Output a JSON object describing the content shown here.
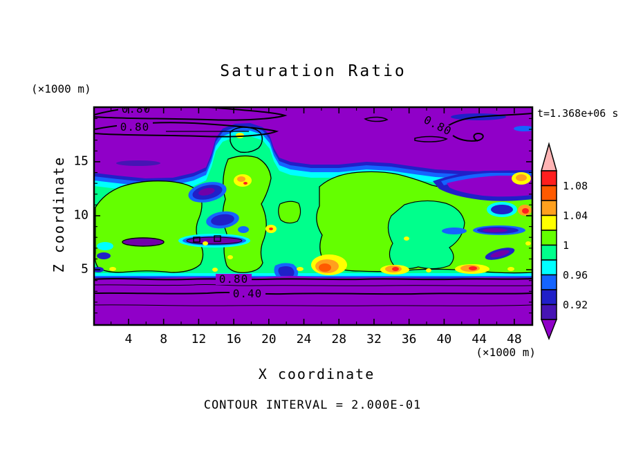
{
  "title": "Saturation Ratio",
  "annotations": {
    "time": "t=1.368e+06 s",
    "contour_interval": "CONTOUR INTERVAL = 2.000E-01"
  },
  "axes": {
    "x": {
      "label": "X coordinate",
      "units": "(×1000 m)",
      "ticks": [
        "4",
        "8",
        "12",
        "16",
        "20",
        "24",
        "28",
        "32",
        "36",
        "40",
        "44",
        "48"
      ]
    },
    "y": {
      "label": "Z coordinate",
      "units": "(×1000 m)",
      "ticks": [
        "15",
        "10",
        "5"
      ]
    }
  },
  "colorbar": {
    "cells_top_to_bottom": [
      "#FF1E1E",
      "#FF5A00",
      "#FFA01E",
      "#FFFF00",
      "#64FF00",
      "#00FF8C",
      "#00FFFF",
      "#1464FF",
      "#2020C8",
      "#4614B4"
    ],
    "over_color": "#FFB4B4",
    "under_color": "#9000C8",
    "labels": [
      {
        "text": "1.08",
        "boundary": 1
      },
      {
        "text": "1.04",
        "boundary": 3
      },
      {
        "text": "1",
        "boundary": 5
      },
      {
        "text": "0.96",
        "boundary": 7
      },
      {
        "text": "0.92",
        "boundary": 9
      }
    ]
  },
  "contour_line_labels": [
    "0.80",
    "0.80",
    "0.80",
    "0.80",
    "0.40"
  ],
  "palette": {
    "purple": "#9000C8",
    "darkpurple": "#7000A8",
    "indigo": "#4614B4",
    "navy": "#2020C8",
    "blue": "#1464FF",
    "cyan": "#00FFFF",
    "springgreen": "#00FF8C",
    "chartreuse": "#64FF00",
    "yellow": "#FFFF00",
    "orange": "#FFA01E",
    "orangered": "#FF5A00",
    "red": "#FF1E1E",
    "pink": "#FFB4B4"
  },
  "chart_data": {
    "type": "filled_contour",
    "title": "Saturation Ratio",
    "xlabel": "X coordinate (×1000 m)",
    "ylabel": "Z coordinate (×1000 m)",
    "xlim": [
      0,
      50
    ],
    "ylim": [
      0,
      20
    ],
    "x_major_ticks": [
      4,
      8,
      12,
      16,
      20,
      24,
      28,
      32,
      36,
      40,
      44,
      48
    ],
    "y_major_ticks": [
      5,
      10,
      15
    ],
    "annotation_time": "t=1.368e+06 s",
    "fill_levels": [
      0.9,
      0.92,
      0.94,
      0.96,
      0.98,
      1.0,
      1.02,
      1.04,
      1.06,
      1.08,
      1.1
    ],
    "fill_colors_low_to_high": [
      "#4614B4",
      "#2020C8",
      "#1464FF",
      "#00FFFF",
      "#00FF8C",
      "#64FF00",
      "#FFFF00",
      "#FFA01E",
      "#FF5A00",
      "#FF1E1E"
    ],
    "under_color": "#9000C8",
    "over_color": "#FFB4B4",
    "line_contour_interval": 0.2,
    "labeled_line_contours": [
      0.4,
      0.8
    ],
    "visible_structure": "Saturation ratio below 0.9 (purple) above z≈16.5 and below z≈4.5 with line contours 0.8,0.6,0.4,0.2 in the lower layer; a saturated cloud layer (0.98-1.02, greens) spans z≈5-14 across all x with cyan/blue/navy fringes, embedded subsaturated ovals near x≈10-13 z≈8-12 and x≈44-47 z≈8-11, supersaturated yellow/orange/red spots near cloud base z≈5 (x≈26-28, 34-36, 41-43) and x≈16 z≈13, and a dry purple tongue intruding from the right edge at z≈13-14"
  }
}
